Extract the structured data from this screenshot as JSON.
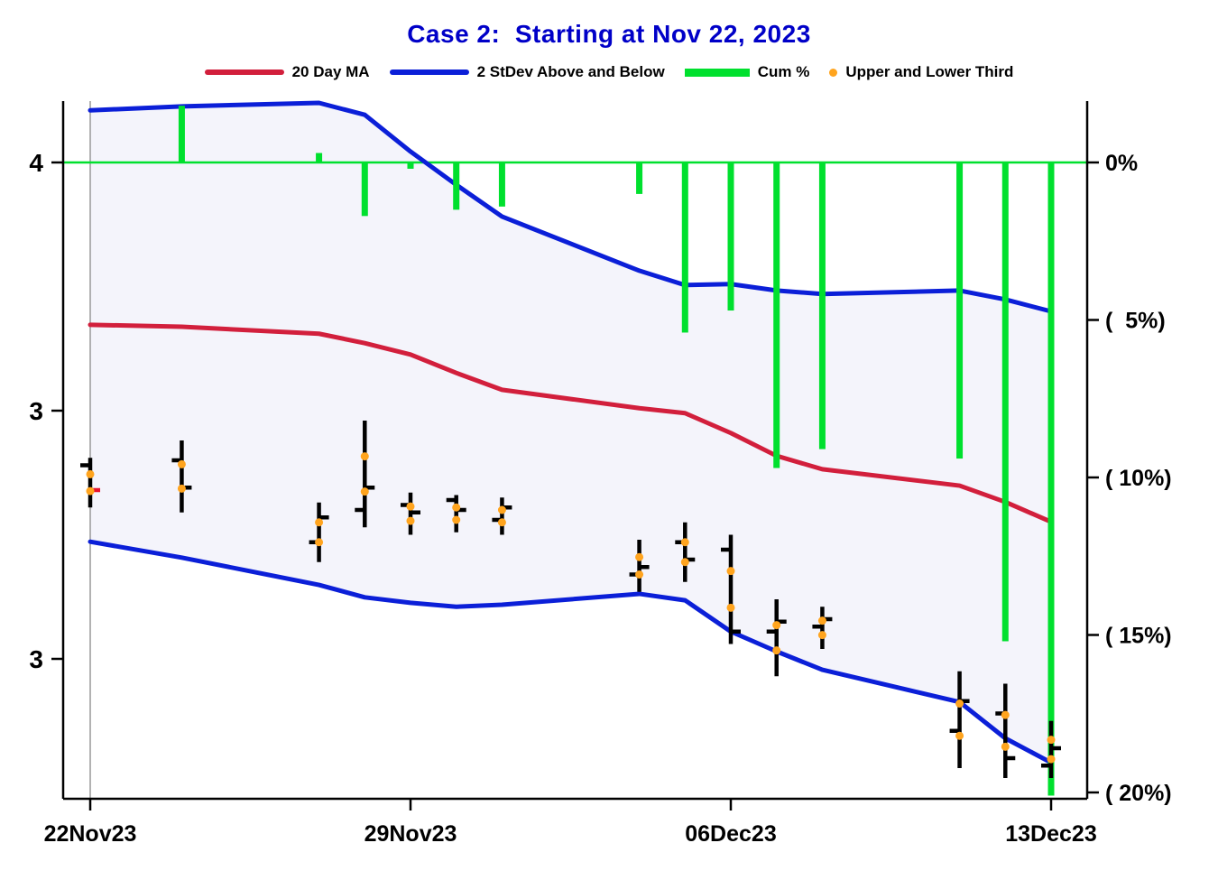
{
  "title": "Case 2:  Starting at Nov 22, 2023",
  "legend": [
    {
      "label": "20 Day MA",
      "swatch": "line",
      "color": "#d21f3c"
    },
    {
      "label": "2 StDev Above and Below",
      "swatch": "line",
      "color": "#0b1fd8"
    },
    {
      "label": "Cum %",
      "swatch": "thick",
      "color": "#00e02e"
    },
    {
      "label": "Upper and Lower Third",
      "swatch": "dot",
      "color": "#ffa41e"
    }
  ],
  "chart_data": {
    "type": "mixed",
    "components": [
      "ohlc-bars",
      "line",
      "bar",
      "scatter"
    ],
    "title": "Case 2:  Starting at Nov 22, 2023",
    "colors": {
      "title_blue": "#0000c8",
      "ma_red": "#d21f3c",
      "stdev_blue": "#0b1fd8",
      "cum_green": "#00e02e",
      "third_orange": "#ffa41e",
      "band_fill": "#f4f4fb",
      "start_line_gray": "#999999",
      "close_red": "#e8112d"
    },
    "x_axis": {
      "tick_labels": [
        "22Nov23",
        "29Nov23",
        "06Dec23",
        "13Dec23"
      ],
      "tick_day_offsets": [
        0,
        7,
        14,
        21
      ]
    },
    "y_left": {
      "tick_labels": [
        "4",
        "3",
        "3"
      ],
      "tick_values": [
        4.0,
        3.5,
        3.0
      ],
      "range": [
        2.6,
        4.2
      ]
    },
    "y_right": {
      "tick_labels": [
        "0%",
        "(  5%)",
        "( 10%)",
        "( 15%)",
        "( 20%)"
      ],
      "tick_values": [
        0,
        -5,
        -10,
        -15,
        -20
      ]
    },
    "dates": [
      "22Nov23",
      "24Nov23",
      "27Nov23",
      "28Nov23",
      "29Nov23",
      "30Nov23",
      "01Dec23",
      "04Dec23",
      "05Dec23",
      "06Dec23",
      "07Dec23",
      "08Dec23",
      "11Dec23",
      "12Dec23",
      "13Dec23"
    ],
    "day_offsets": [
      0,
      2,
      5,
      6,
      7,
      8,
      9,
      12,
      13,
      14,
      15,
      16,
      19,
      20,
      21
    ],
    "series": {
      "upper_band": [
        4.105,
        4.113,
        4.12,
        4.096,
        4.022,
        3.955,
        3.891,
        3.782,
        3.753,
        3.755,
        3.742,
        3.735,
        3.742,
        3.724,
        3.7
      ],
      "lower_band": [
        3.236,
        3.204,
        3.149,
        3.124,
        3.113,
        3.105,
        3.109,
        3.131,
        3.118,
        3.055,
        3.015,
        2.978,
        2.913,
        2.84,
        2.791
      ],
      "ma20": [
        3.673,
        3.669,
        3.655,
        3.636,
        3.613,
        3.576,
        3.542,
        3.505,
        3.495,
        3.455,
        3.409,
        3.382,
        3.349,
        3.316,
        3.276
      ],
      "cum_pct": [
        0.0,
        1.8,
        0.3,
        -1.7,
        -0.2,
        -1.5,
        -1.4,
        -1.0,
        -5.4,
        -4.7,
        -9.7,
        -9.1,
        -9.4,
        -15.2,
        -20.1
      ],
      "ohlc": [
        {
          "open": 3.39,
          "high": 3.405,
          "low": 3.305,
          "close": 3.34,
          "close_tick": "red"
        },
        {
          "open": 3.4,
          "high": 3.44,
          "low": 3.295,
          "close": 3.345
        },
        {
          "open": 3.235,
          "high": 3.315,
          "low": 3.195,
          "close": 3.285
        },
        {
          "open": 3.3,
          "high": 3.48,
          "low": 3.265,
          "close": 3.345
        },
        {
          "open": 3.31,
          "high": 3.335,
          "low": 3.25,
          "close": 3.295
        },
        {
          "open": 3.32,
          "high": 3.33,
          "low": 3.255,
          "close": 3.3
        },
        {
          "open": 3.28,
          "high": 3.325,
          "low": 3.25,
          "close": 3.305
        },
        {
          "open": 3.17,
          "high": 3.24,
          "low": 3.135,
          "close": 3.185
        },
        {
          "open": 3.235,
          "high": 3.275,
          "low": 3.155,
          "close": 3.2
        },
        {
          "open": 3.22,
          "high": 3.25,
          "low": 3.03,
          "close": 3.055
        },
        {
          "open": 3.055,
          "high": 3.12,
          "low": 2.965,
          "close": 3.075
        },
        {
          "open": 3.065,
          "high": 3.105,
          "low": 3.02,
          "close": 3.08
        },
        {
          "open": 2.855,
          "high": 2.975,
          "low": 2.78,
          "close": 2.915
        },
        {
          "open": 2.89,
          "high": 2.95,
          "low": 2.76,
          "close": 2.8
        },
        {
          "open": 2.785,
          "high": 2.875,
          "low": 2.76,
          "close": 2.82
        }
      ],
      "upper_third": [
        3.372,
        3.392,
        3.275,
        3.408,
        3.307,
        3.305,
        3.3,
        3.205,
        3.235,
        3.177,
        3.068,
        3.077,
        2.91,
        2.887,
        2.837
      ],
      "lower_third": [
        3.338,
        3.343,
        3.235,
        3.337,
        3.278,
        3.28,
        3.275,
        3.17,
        3.195,
        3.103,
        3.017,
        3.048,
        2.845,
        2.823,
        2.798
      ]
    }
  }
}
